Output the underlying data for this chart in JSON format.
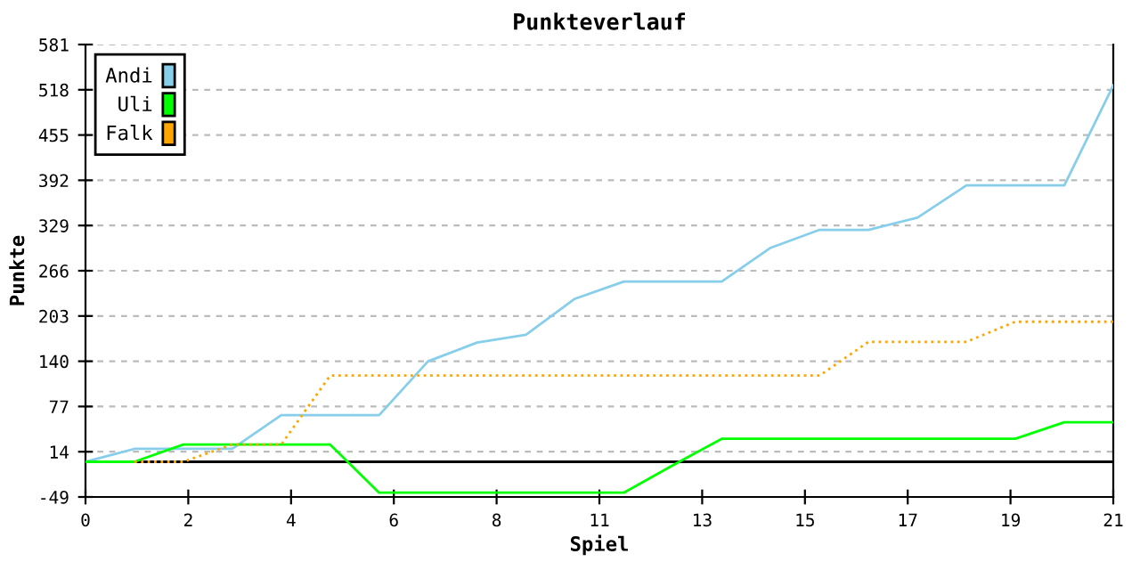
{
  "chart_data": {
    "type": "line",
    "title": "Punkteverlauf",
    "xlabel": "Spiel",
    "ylabel": "Punkte",
    "x": [
      0,
      1,
      2,
      3,
      4,
      5,
      6,
      7,
      8,
      9,
      10,
      11,
      12,
      13,
      14,
      15,
      16,
      17,
      18,
      19,
      20,
      21
    ],
    "series": [
      {
        "name": "Andi",
        "color": "#87ceeb",
        "line_style": "solid",
        "values": [
          0,
          18,
          18,
          18,
          65,
          65,
          65,
          140,
          166,
          177,
          227,
          251,
          251,
          251,
          298,
          323,
          323,
          340,
          385,
          385,
          385,
          524
        ]
      },
      {
        "name": "Uli",
        "color": "#00ff00",
        "line_style": "solid",
        "values": [
          0,
          0,
          24,
          24,
          24,
          24,
          -43,
          -43,
          -43,
          -43,
          -43,
          -43,
          -5,
          32,
          32,
          32,
          32,
          32,
          32,
          32,
          55,
          55
        ]
      },
      {
        "name": "Falk",
        "color": "#ffa500",
        "line_style": "dotted",
        "values": [
          null,
          0,
          0,
          24,
          24,
          120,
          120,
          120,
          120,
          120,
          120,
          120,
          120,
          120,
          120,
          120,
          167,
          167,
          167,
          195,
          195,
          195
        ]
      }
    ],
    "xlim": [
      0,
      21
    ],
    "xticks": [
      0,
      {
        "value": 2.1,
        "label": "2"
      },
      {
        "value": 4.2,
        "label": "4"
      },
      {
        "value": 6.3,
        "label": "6"
      },
      {
        "value": 8.4,
        "label": "8"
      },
      {
        "value": 10.5,
        "label": "11"
      },
      {
        "value": 12.6,
        "label": "13"
      },
      {
        "value": 14.7,
        "label": "15"
      },
      {
        "value": 16.8,
        "label": "17"
      },
      {
        "value": 18.9,
        "label": "19"
      },
      21
    ],
    "ylim": [
      -49,
      581
    ],
    "yticks": [
      -49,
      14,
      77,
      140,
      203,
      266,
      329,
      392,
      455,
      518,
      581
    ],
    "ref_lines": [
      {
        "axis": "y",
        "value": 0,
        "color": "#000000"
      }
    ],
    "grid": "y",
    "legend": "top left"
  }
}
